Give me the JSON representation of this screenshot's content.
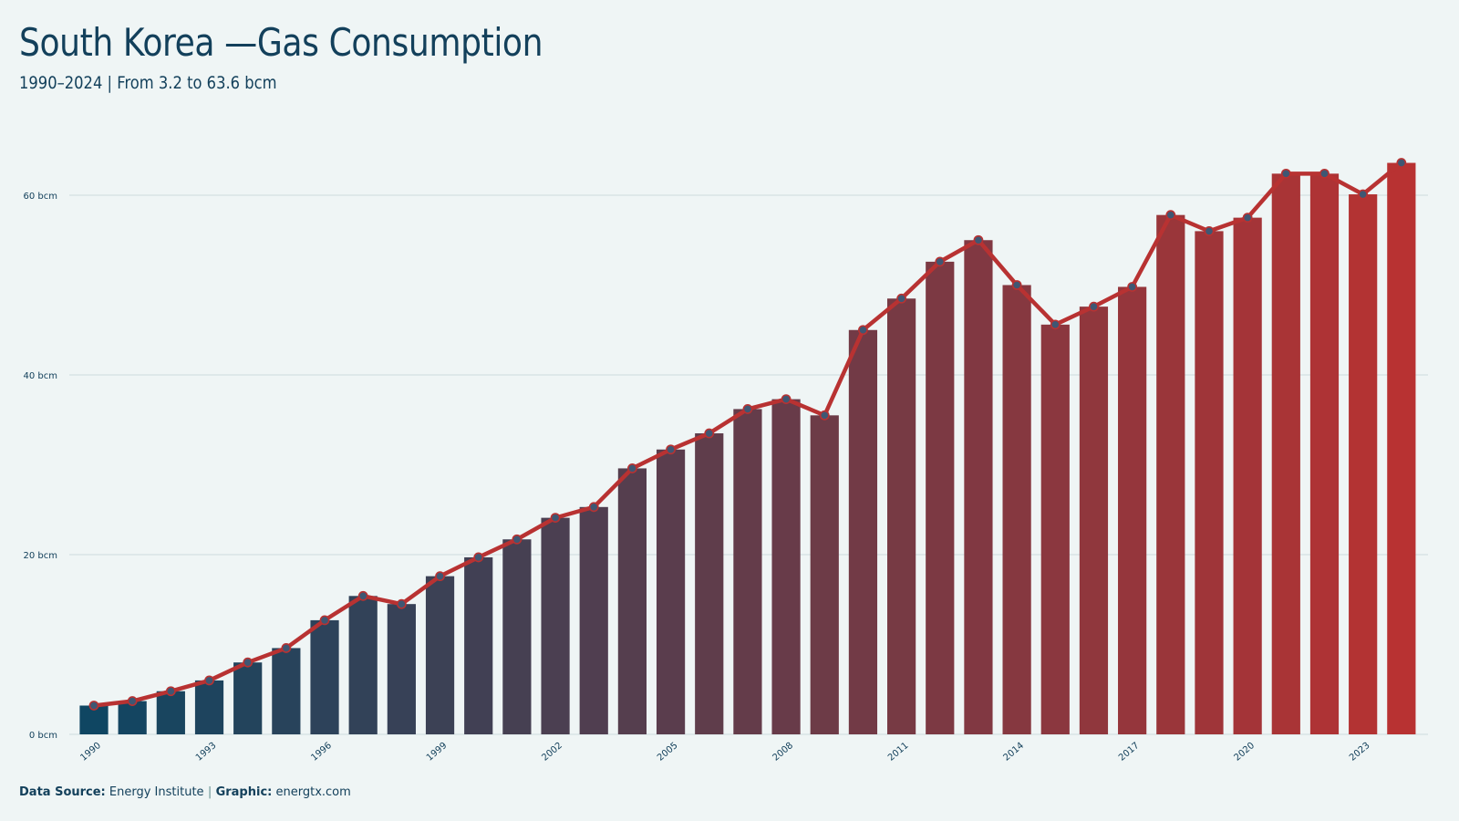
{
  "header": {
    "title": "South Korea —Gas Consumption",
    "subtitle": "1990–2024 | From 3.2 to 63.6 bcm"
  },
  "footer": {
    "source_label": "Data Source:",
    "source_value": "Energy Institute",
    "separator": "|",
    "graphic_label": "Graphic:",
    "graphic_value": "energtx.com"
  },
  "colors": {
    "start_bar": "#0f4662",
    "end_bar": "#b83232",
    "line": "#b83232",
    "marker_fill": "#3f5773",
    "grid": "#d3e0e2",
    "text": "#13405b"
  },
  "chart_data": {
    "type": "bar",
    "title": "South Korea —Gas Consumption",
    "subtitle": "1990–2024 | From 3.2 to 63.6 bcm",
    "xlabel": "",
    "ylabel": "",
    "unit": "bcm",
    "ylim": [
      0,
      65
    ],
    "yticks": [
      0,
      20,
      40,
      60
    ],
    "ytick_labels": [
      "0 bcm",
      "20 bcm",
      "40 bcm",
      "60 bcm"
    ],
    "xtick_labels": [
      "1990",
      "1993",
      "1996",
      "1999",
      "2002",
      "2005",
      "2008",
      "2011",
      "2014",
      "2017",
      "2020",
      "2023"
    ],
    "grid": true,
    "legend": "none",
    "categories": [
      "1990",
      "1991",
      "1992",
      "1993",
      "1994",
      "1995",
      "1996",
      "1997",
      "1998",
      "1999",
      "2000",
      "2001",
      "2002",
      "2003",
      "2004",
      "2005",
      "2006",
      "2007",
      "2008",
      "2009",
      "2010",
      "2011",
      "2012",
      "2013",
      "2014",
      "2015",
      "2016",
      "2017",
      "2018",
      "2019",
      "2020",
      "2021",
      "2022",
      "2023",
      "2024"
    ],
    "series": [
      {
        "values": [
          3.2,
          3.7,
          4.8,
          6.0,
          8.0,
          9.6,
          12.7,
          15.4,
          14.5,
          17.6,
          19.7,
          21.7,
          24.1,
          25.3,
          29.6,
          31.7,
          33.5,
          36.2,
          37.3,
          35.5,
          45.0,
          48.5,
          52.6,
          55.0,
          50.0,
          45.6,
          47.6,
          49.8,
          57.8,
          56.0,
          57.5,
          62.4,
          62.4,
          60.1,
          63.6
        ]
      }
    ]
  }
}
